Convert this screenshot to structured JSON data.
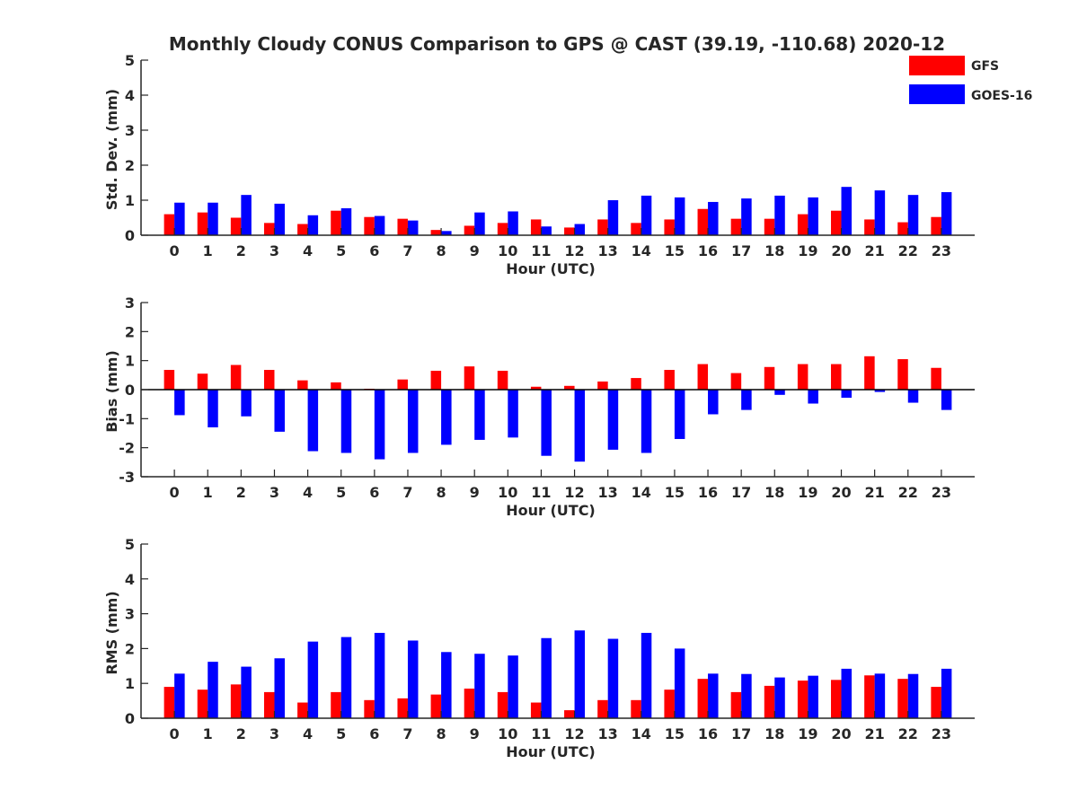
{
  "title": "Monthly Cloudy CONUS Comparison to GPS @ CAST (39.19, -110.68) 2020-12",
  "legend": {
    "placement": "top-right",
    "entries": [
      {
        "label": "GFS",
        "color": "#ff0000"
      },
      {
        "label": "GOES-16",
        "color": "#0000ff"
      }
    ]
  },
  "chart_data": [
    {
      "type": "bar",
      "xlabel": "Hour (UTC)",
      "ylabel": "Std. Dev. (mm)",
      "ylim": [
        0,
        5
      ],
      "yticks": [
        "0",
        "1",
        "2",
        "3",
        "4",
        "5"
      ],
      "categories": [
        "0",
        "1",
        "2",
        "3",
        "4",
        "5",
        "6",
        "7",
        "8",
        "9",
        "10",
        "11",
        "12",
        "13",
        "14",
        "15",
        "16",
        "17",
        "18",
        "19",
        "20",
        "21",
        "22",
        "23"
      ],
      "series": [
        {
          "name": "GFS",
          "color": "#ff0000",
          "values": [
            0.6,
            0.65,
            0.5,
            0.35,
            0.32,
            0.7,
            0.52,
            0.47,
            0.15,
            0.27,
            0.35,
            0.45,
            0.22,
            0.45,
            0.35,
            0.45,
            0.75,
            0.47,
            0.47,
            0.6,
            0.7,
            0.45,
            0.37,
            0.52
          ]
        },
        {
          "name": "GOES-16",
          "color": "#0000ff",
          "values": [
            0.93,
            0.93,
            1.15,
            0.9,
            0.57,
            0.77,
            0.55,
            0.42,
            0.12,
            0.65,
            0.68,
            0.25,
            0.32,
            1.0,
            1.13,
            1.08,
            0.95,
            1.05,
            1.13,
            1.08,
            1.38,
            1.28,
            1.15,
            1.23
          ]
        }
      ]
    },
    {
      "type": "bar",
      "xlabel": "Hour (UTC)",
      "ylabel": "Bias (mm)",
      "ylim": [
        -3,
        3
      ],
      "yticks": [
        "-3",
        "-2",
        "-1",
        "0",
        "1",
        "2",
        "3"
      ],
      "zero_line": true,
      "categories": [
        "0",
        "1",
        "2",
        "3",
        "4",
        "5",
        "6",
        "7",
        "8",
        "9",
        "10",
        "11",
        "12",
        "13",
        "14",
        "15",
        "16",
        "17",
        "18",
        "19",
        "20",
        "21",
        "22",
        "23"
      ],
      "series": [
        {
          "name": "GFS",
          "color": "#ff0000",
          "values": [
            0.68,
            0.55,
            0.85,
            0.68,
            0.32,
            0.25,
            0.03,
            0.35,
            0.65,
            0.8,
            0.65,
            0.1,
            0.13,
            0.28,
            0.4,
            0.68,
            0.88,
            0.57,
            0.78,
            0.88,
            0.88,
            1.15,
            1.05,
            0.75
          ]
        },
        {
          "name": "GOES-16",
          "color": "#0000ff",
          "values": [
            -0.88,
            -1.3,
            -0.92,
            -1.45,
            -2.12,
            -2.18,
            -2.4,
            -2.18,
            -1.9,
            -1.73,
            -1.65,
            -2.28,
            -2.48,
            -2.07,
            -2.18,
            -1.7,
            -0.85,
            -0.7,
            -0.18,
            -0.48,
            -0.28,
            -0.08,
            -0.45,
            -0.7
          ]
        }
      ]
    },
    {
      "type": "bar",
      "xlabel": "Hour (UTC)",
      "ylabel": "RMS (mm)",
      "ylim": [
        0,
        5
      ],
      "yticks": [
        "0",
        "1",
        "2",
        "3",
        "4",
        "5"
      ],
      "categories": [
        "0",
        "1",
        "2",
        "3",
        "4",
        "5",
        "6",
        "7",
        "8",
        "9",
        "10",
        "11",
        "12",
        "13",
        "14",
        "15",
        "16",
        "17",
        "18",
        "19",
        "20",
        "21",
        "22",
        "23"
      ],
      "series": [
        {
          "name": "GFS",
          "color": "#ff0000",
          "values": [
            0.9,
            0.82,
            0.97,
            0.75,
            0.45,
            0.75,
            0.52,
            0.57,
            0.68,
            0.85,
            0.75,
            0.45,
            0.23,
            0.52,
            0.52,
            0.82,
            1.13,
            0.75,
            0.93,
            1.08,
            1.1,
            1.23,
            1.13,
            0.9
          ]
        },
        {
          "name": "GOES-16",
          "color": "#0000ff",
          "values": [
            1.28,
            1.62,
            1.48,
            1.72,
            2.2,
            2.33,
            2.45,
            2.23,
            1.9,
            1.85,
            1.8,
            2.3,
            2.52,
            2.28,
            2.45,
            2.0,
            1.28,
            1.27,
            1.17,
            1.22,
            1.42,
            1.28,
            1.27,
            1.42
          ]
        }
      ]
    }
  ]
}
